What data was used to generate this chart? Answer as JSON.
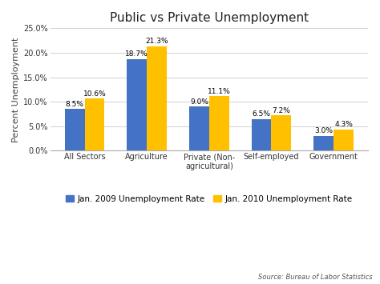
{
  "title": "Public vs Private Unemployment",
  "categories": [
    "All Sectors",
    "Agriculture",
    "Private (Non-\nagricultural)",
    "Self-employed",
    "Government"
  ],
  "jan2009": [
    8.5,
    18.7,
    9.0,
    6.5,
    3.0
  ],
  "jan2010": [
    10.6,
    21.3,
    11.1,
    7.2,
    4.3
  ],
  "jan2009_label": "Jan. 2009 Unemployment Rate",
  "jan2010_label": "Jan. 2010 Unemployment Rate",
  "bar_color_2009": "#4472C4",
  "bar_color_2010": "#FFC000",
  "ylabel": "Percent Unemployment",
  "ylim": [
    0,
    25
  ],
  "yticks": [
    0.0,
    5.0,
    10.0,
    15.0,
    20.0,
    25.0
  ],
  "ytick_labels": [
    "0.0%",
    "5.0%",
    "10.0%",
    "15.0%",
    "20.0%",
    "25.0%"
  ],
  "source_text": "Source: Bureau of Labor Statistics",
  "background_color": "#FFFFFF",
  "plot_bg_color": "#FFFFFF",
  "grid_color": "#D0D0D0",
  "title_fontsize": 11,
  "label_fontsize": 6.5,
  "axis_fontsize": 7,
  "ylabel_fontsize": 8,
  "legend_fontsize": 7.5,
  "bar_width": 0.32
}
